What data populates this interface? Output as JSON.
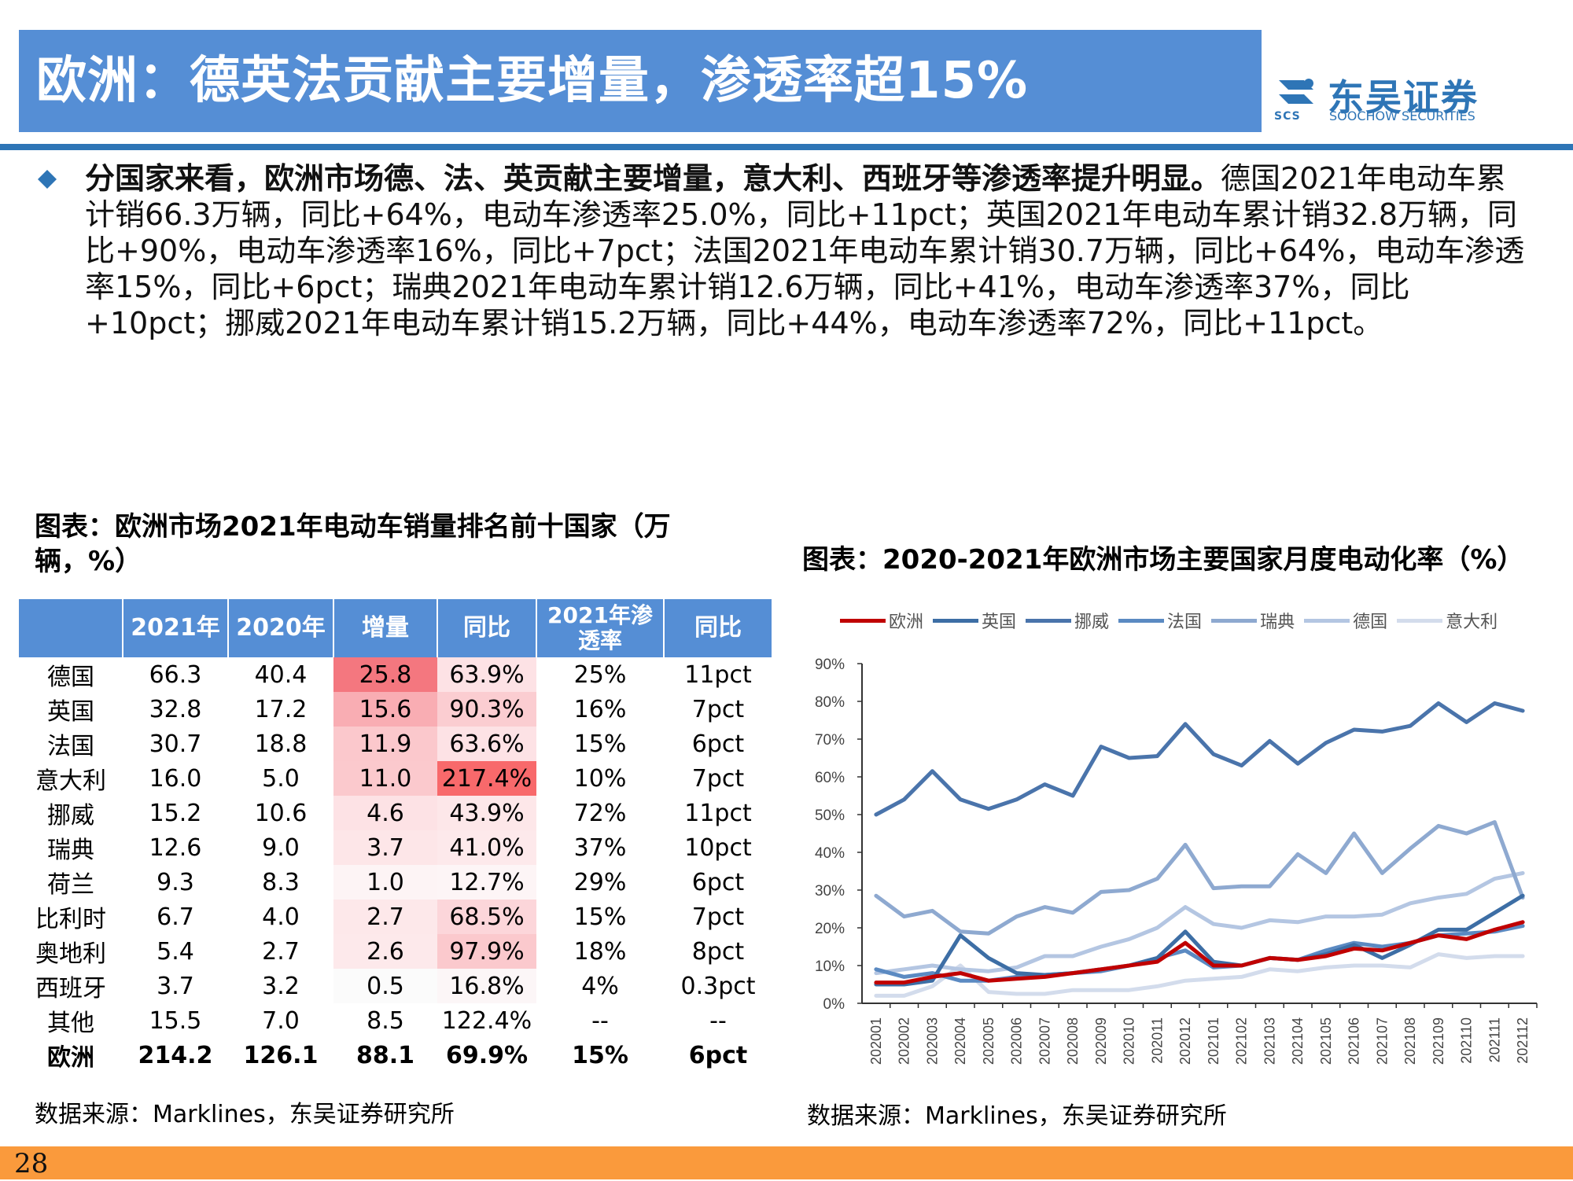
{
  "header": {
    "title": "欧洲：德英法贡献主要增量，渗透率超15%",
    "logo_cn": "东吴证券",
    "logo_en": "SOOCHOW SECURITIES",
    "logo_abbr": "SCS"
  },
  "bullet": {
    "bold_lead": "分国家来看，欧洲市场德、法、英贡献主要增量，意大利、西班牙等渗透率提升明显。",
    "body": "德国2021年电动车累计销66.3万辆，同比+64%，电动车渗透率25.0%，同比+11pct；英国2021年电动车累计销32.8万辆，同比+90%，电动车渗透率16%，同比+7pct；法国2021年电动车累计销30.7万辆，同比+64%，电动车渗透率15%，同比+6pct；瑞典2021年电动车累计销12.6万辆，同比+41%，电动车渗透率37%，同比+10pct；挪威2021年电动车累计销15.2万辆，同比+44%，电动车渗透率72%，同比+11pct。"
  },
  "table": {
    "caption": "图表：欧洲市场2021年电动车销量排名前十国家（万辆，%）",
    "headers": [
      "",
      "2021年",
      "2020年",
      "增量",
      "同比",
      "2021年渗透率",
      "同比"
    ],
    "rows": [
      {
        "country": "德国",
        "y2021": "66.3",
        "y2020": "40.4",
        "inc": "25.8",
        "yoy": "63.9%",
        "pen": "25%",
        "pen_yoy": "11pct"
      },
      {
        "country": "英国",
        "y2021": "32.8",
        "y2020": "17.2",
        "inc": "15.6",
        "yoy": "90.3%",
        "pen": "16%",
        "pen_yoy": "7pct"
      },
      {
        "country": "法国",
        "y2021": "30.7",
        "y2020": "18.8",
        "inc": "11.9",
        "yoy": "63.6%",
        "pen": "15%",
        "pen_yoy": "6pct"
      },
      {
        "country": "意大利",
        "y2021": "16.0",
        "y2020": "5.0",
        "inc": "11.0",
        "yoy": "217.4%",
        "pen": "10%",
        "pen_yoy": "7pct"
      },
      {
        "country": "挪威",
        "y2021": "15.2",
        "y2020": "10.6",
        "inc": "4.6",
        "yoy": "43.9%",
        "pen": "72%",
        "pen_yoy": "11pct"
      },
      {
        "country": "瑞典",
        "y2021": "12.6",
        "y2020": "9.0",
        "inc": "3.7",
        "yoy": "41.0%",
        "pen": "37%",
        "pen_yoy": "10pct"
      },
      {
        "country": "荷兰",
        "y2021": "9.3",
        "y2020": "8.3",
        "inc": "1.0",
        "yoy": "12.7%",
        "pen": "29%",
        "pen_yoy": "6pct"
      },
      {
        "country": "比利时",
        "y2021": "6.7",
        "y2020": "4.0",
        "inc": "2.7",
        "yoy": "68.5%",
        "pen": "15%",
        "pen_yoy": "7pct"
      },
      {
        "country": "奥地利",
        "y2021": "5.4",
        "y2020": "2.7",
        "inc": "2.6",
        "yoy": "97.9%",
        "pen": "18%",
        "pen_yoy": "8pct"
      },
      {
        "country": "西班牙",
        "y2021": "3.7",
        "y2020": "3.2",
        "inc": "0.5",
        "yoy": "16.8%",
        "pen": "4%",
        "pen_yoy": "0.3pct"
      },
      {
        "country": "其他",
        "y2021": "15.5",
        "y2020": "7.0",
        "inc": "8.5",
        "yoy": "122.4%",
        "pen": "--",
        "pen_yoy": "--"
      },
      {
        "country": "欧洲",
        "y2021": "214.2",
        "y2020": "126.1",
        "inc": "88.1",
        "yoy": "69.9%",
        "pen": "15%",
        "pen_yoy": "6pct"
      }
    ],
    "inc_colors": [
      "#f4777f",
      "#f9adb3",
      "#fbc8cc",
      "#fbc9cd",
      "#fde2e5",
      "#fde6e8",
      "#fdf4f5",
      "#fde8ea",
      "#fde9eb",
      "#fbfbfb"
    ],
    "yoy_colors": [
      "#fde2e5",
      "#fbcdd1",
      "#fde2e5",
      "#f8696b",
      "#fde7e9",
      "#fde9eb",
      "#fdf5f6",
      "#fcd6da",
      "#fbc9cd",
      "#fcf6f7"
    ],
    "source": "数据来源：Marklines，东吴证券研究所"
  },
  "chart_data": {
    "type": "line",
    "title": "图表：2020-2021年欧洲市场主要国家月度电动化率（%）",
    "x": [
      "202001",
      "202002",
      "202003",
      "202004",
      "202005",
      "202006",
      "202007",
      "202008",
      "202009",
      "202010",
      "202011",
      "202012",
      "202101",
      "202102",
      "202103",
      "202104",
      "202105",
      "202106",
      "202107",
      "202108",
      "202109",
      "202110",
      "202111",
      "202112"
    ],
    "ylim": [
      0,
      90
    ],
    "yticks": [
      "0%",
      "10%",
      "20%",
      "30%",
      "40%",
      "50%",
      "60%",
      "70%",
      "80%",
      "90%"
    ],
    "series": [
      {
        "name": "欧洲",
        "color": "#c00000",
        "values": [
          5.5,
          5.5,
          7,
          8,
          6,
          6.5,
          7,
          8,
          9,
          10,
          11,
          16,
          10,
          10,
          12,
          11.5,
          12.5,
          14.5,
          14,
          16,
          18,
          17,
          19.5,
          21.5
        ]
      },
      {
        "name": "英国",
        "color": "#3d6ea5",
        "values": [
          5,
          5,
          6,
          18,
          12,
          8,
          7.5,
          8,
          9,
          10,
          12,
          19,
          11,
          10,
          12,
          11.5,
          13,
          15.5,
          12,
          15.5,
          19.5,
          19.5,
          24,
          28.5
        ]
      },
      {
        "name": "挪威",
        "color": "#4a74ab",
        "values": [
          50,
          54,
          61.5,
          54,
          51.5,
          54,
          58,
          55,
          68,
          65,
          65.5,
          74,
          66,
          63,
          69.5,
          63.5,
          69,
          72.5,
          72,
          73.5,
          79.5,
          74.5,
          79.5,
          77.5
        ]
      },
      {
        "name": "法国",
        "color": "#5b8ac2",
        "values": [
          9,
          7,
          8,
          6,
          6,
          7,
          7.5,
          8,
          8.5,
          10,
          12,
          14,
          9.5,
          10,
          12,
          11.5,
          14,
          16,
          15,
          16,
          18,
          18.5,
          19,
          20.5
        ]
      },
      {
        "name": "瑞典",
        "color": "#8ea9d0",
        "values": [
          28.5,
          23,
          24.5,
          19,
          18.5,
          23,
          25.5,
          24,
          29.5,
          30,
          33,
          42,
          30.5,
          31,
          31,
          39.5,
          34.5,
          45,
          34.5,
          41,
          47,
          45,
          48,
          28
        ]
      },
      {
        "name": "德国",
        "color": "#b4c6e2",
        "values": [
          8,
          9,
          10,
          9,
          8.5,
          9.5,
          12.5,
          12.5,
          15,
          17,
          20,
          25.5,
          21,
          20,
          22,
          21.5,
          23,
          23,
          23.5,
          26.5,
          28,
          29,
          33,
          34.5
        ]
      },
      {
        "name": "意大利",
        "color": "#d3dcec",
        "values": [
          2,
          2,
          4.5,
          10,
          3,
          2.5,
          2.5,
          3.5,
          3.5,
          3.5,
          4.5,
          6,
          6.5,
          7,
          9,
          8.5,
          9.5,
          10,
          10,
          9.5,
          13,
          12,
          12.5,
          12.5
        ]
      }
    ],
    "source": "数据来源：Marklines，东吴证券研究所"
  },
  "footer": {
    "page": "28"
  }
}
